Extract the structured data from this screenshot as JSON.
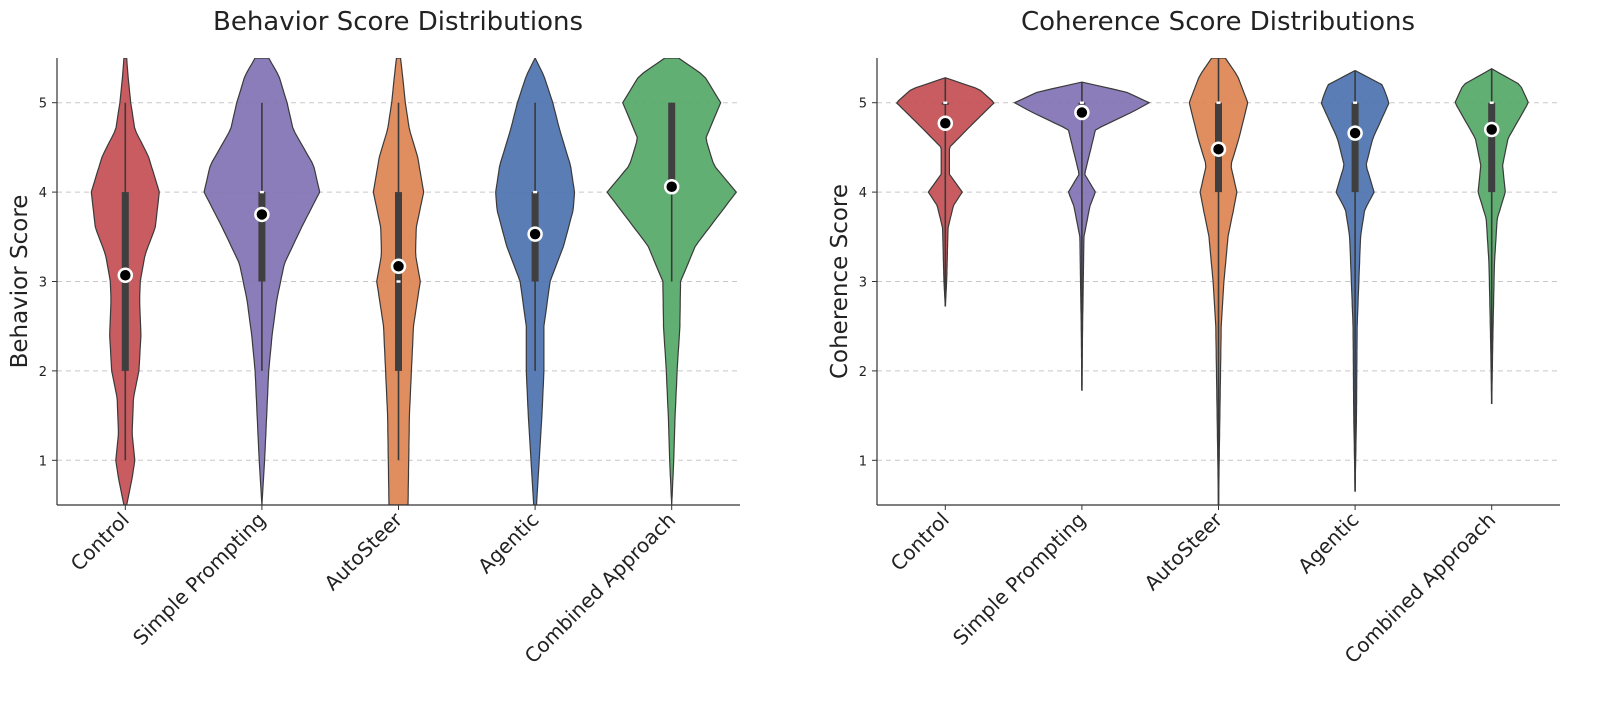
{
  "chart_data": [
    {
      "type": "violin",
      "title": "Behavior Score Distributions",
      "xlabel": "",
      "ylabel": "Behavior Score",
      "ylim": [
        0.5,
        5.5
      ],
      "yticks": [
        1,
        2,
        3,
        4,
        5
      ],
      "grid": "y-dashed",
      "categories": [
        "Control",
        "Simple Prompting",
        "AutoSteer",
        "Agentic",
        "Combined Approach"
      ],
      "colors": [
        "#c44e52",
        "#8172b3",
        "#dd8452",
        "#4c72b0",
        "#55a868"
      ],
      "series": [
        {
          "name": "Control",
          "mean": 3.07,
          "median": 3.0,
          "q1": 2.0,
          "q3": 4.0,
          "min": 1.0,
          "max": 5.0,
          "density": [
            [
              0.5,
              0.02
            ],
            [
              0.8,
              0.1
            ],
            [
              1.0,
              0.14
            ],
            [
              1.3,
              0.1
            ],
            [
              1.7,
              0.12
            ],
            [
              2.0,
              0.2
            ],
            [
              2.4,
              0.23
            ],
            [
              2.8,
              0.21
            ],
            [
              3.0,
              0.22
            ],
            [
              3.3,
              0.29
            ],
            [
              3.6,
              0.44
            ],
            [
              4.0,
              0.5
            ],
            [
              4.4,
              0.34
            ],
            [
              4.7,
              0.14
            ],
            [
              5.0,
              0.08
            ],
            [
              5.3,
              0.04
            ],
            [
              5.5,
              0.02
            ]
          ]
        },
        {
          "name": "Simple Prompting",
          "mean": 3.75,
          "median": 4.0,
          "q1": 3.0,
          "q3": 4.0,
          "min": 2.0,
          "max": 5.0,
          "density": [
            [
              0.5,
              0.0
            ],
            [
              1.0,
              0.04
            ],
            [
              1.5,
              0.07
            ],
            [
              2.0,
              0.1
            ],
            [
              2.4,
              0.15
            ],
            [
              2.8,
              0.22
            ],
            [
              3.2,
              0.33
            ],
            [
              3.6,
              0.58
            ],
            [
              4.0,
              0.85
            ],
            [
              4.3,
              0.76
            ],
            [
              4.7,
              0.46
            ],
            [
              5.0,
              0.37
            ],
            [
              5.3,
              0.25
            ],
            [
              5.5,
              0.1
            ]
          ]
        },
        {
          "name": "AutoSteer",
          "mean": 3.17,
          "median": 3.0,
          "q1": 2.0,
          "q3": 4.0,
          "min": 1.0,
          "max": 5.0,
          "density": [
            [
              0.5,
              0.14
            ],
            [
              1.0,
              0.15
            ],
            [
              1.5,
              0.16
            ],
            [
              2.0,
              0.19
            ],
            [
              2.5,
              0.22
            ],
            [
              3.0,
              0.32
            ],
            [
              3.3,
              0.25
            ],
            [
              3.6,
              0.26
            ],
            [
              4.0,
              0.37
            ],
            [
              4.4,
              0.28
            ],
            [
              4.7,
              0.16
            ],
            [
              5.0,
              0.1
            ],
            [
              5.3,
              0.06
            ],
            [
              5.5,
              0.03
            ]
          ]
        },
        {
          "name": "Agentic",
          "mean": 3.53,
          "median": 4.0,
          "q1": 3.0,
          "q3": 4.0,
          "min": 2.0,
          "max": 5.0,
          "density": [
            [
              0.5,
              0.02
            ],
            [
              1.0,
              0.06
            ],
            [
              1.5,
              0.1
            ],
            [
              2.0,
              0.13
            ],
            [
              2.5,
              0.13
            ],
            [
              3.0,
              0.22
            ],
            [
              3.4,
              0.42
            ],
            [
              3.8,
              0.56
            ],
            [
              4.0,
              0.58
            ],
            [
              4.3,
              0.52
            ],
            [
              4.7,
              0.36
            ],
            [
              5.0,
              0.26
            ],
            [
              5.3,
              0.13
            ],
            [
              5.5,
              0.0
            ]
          ]
        },
        {
          "name": "Combined Approach",
          "mean": 4.06,
          "median": 4.0,
          "q1": 4.0,
          "q3": 5.0,
          "min": 3.0,
          "max": 5.0,
          "density": [
            [
              0.5,
              0.0
            ],
            [
              1.0,
              0.03
            ],
            [
              1.5,
              0.05
            ],
            [
              2.0,
              0.08
            ],
            [
              2.5,
              0.12
            ],
            [
              3.0,
              0.13
            ],
            [
              3.4,
              0.35
            ],
            [
              3.7,
              0.65
            ],
            [
              4.0,
              0.95
            ],
            [
              4.3,
              0.62
            ],
            [
              4.6,
              0.5
            ],
            [
              5.0,
              0.72
            ],
            [
              5.3,
              0.48
            ],
            [
              5.5,
              0.1
            ]
          ]
        }
      ]
    },
    {
      "type": "violin",
      "title": "Coherence Score Distributions",
      "xlabel": "",
      "ylabel": "Coherence Score",
      "ylim": [
        0.5,
        5.5
      ],
      "yticks": [
        1,
        2,
        3,
        4,
        5
      ],
      "grid": "y-dashed",
      "categories": [
        "Control",
        "Simple Prompting",
        "AutoSteer",
        "Agentic",
        "Combined Approach"
      ],
      "colors": [
        "#c44e52",
        "#8172b3",
        "#dd8452",
        "#4c72b0",
        "#55a868"
      ],
      "series": [
        {
          "name": "Control",
          "mean": 4.77,
          "median": 5.0,
          "q1": 5.0,
          "q3": 5.0,
          "min": 2.72,
          "max": 5.28,
          "density": [
            [
              2.72,
              0.0
            ],
            [
              3.0,
              0.02
            ],
            [
              3.6,
              0.04
            ],
            [
              3.85,
              0.12
            ],
            [
              4.0,
              0.25
            ],
            [
              4.2,
              0.06
            ],
            [
              4.5,
              0.06
            ],
            [
              4.8,
              0.45
            ],
            [
              5.0,
              0.72
            ],
            [
              5.15,
              0.5
            ],
            [
              5.28,
              0.0
            ]
          ]
        },
        {
          "name": "Simple Prompting",
          "mean": 4.89,
          "median": 5.0,
          "q1": 5.0,
          "q3": 5.0,
          "min": 1.78,
          "max": 5.23,
          "density": [
            [
              1.78,
              0.0
            ],
            [
              2.5,
              0.01
            ],
            [
              3.5,
              0.03
            ],
            [
              3.85,
              0.12
            ],
            [
              4.0,
              0.2
            ],
            [
              4.2,
              0.04
            ],
            [
              4.7,
              0.2
            ],
            [
              4.9,
              0.75
            ],
            [
              5.0,
              0.99
            ],
            [
              5.12,
              0.65
            ],
            [
              5.23,
              0.0
            ]
          ]
        },
        {
          "name": "AutoSteer",
          "mean": 4.48,
          "median": 5.0,
          "q1": 4.0,
          "q3": 5.0,
          "min": 0.5,
          "max": 5.5,
          "density": [
            [
              0.5,
              0.0
            ],
            [
              1.5,
              0.02
            ],
            [
              2.5,
              0.04
            ],
            [
              3.0,
              0.08
            ],
            [
              3.5,
              0.14
            ],
            [
              3.8,
              0.22
            ],
            [
              4.0,
              0.27
            ],
            [
              4.3,
              0.18
            ],
            [
              4.6,
              0.3
            ],
            [
              5.0,
              0.43
            ],
            [
              5.3,
              0.28
            ],
            [
              5.5,
              0.1
            ]
          ]
        },
        {
          "name": "Agentic",
          "mean": 4.66,
          "median": 5.0,
          "q1": 4.0,
          "q3": 5.0,
          "min": 0.65,
          "max": 5.36,
          "density": [
            [
              0.65,
              0.0
            ],
            [
              1.5,
              0.02
            ],
            [
              2.5,
              0.03
            ],
            [
              3.5,
              0.08
            ],
            [
              3.8,
              0.14
            ],
            [
              4.0,
              0.28
            ],
            [
              4.3,
              0.16
            ],
            [
              4.6,
              0.26
            ],
            [
              5.0,
              0.5
            ],
            [
              5.2,
              0.4
            ],
            [
              5.36,
              0.0
            ]
          ]
        },
        {
          "name": "Combined Approach",
          "mean": 4.7,
          "median": 5.0,
          "q1": 4.0,
          "q3": 5.0,
          "min": 1.63,
          "max": 5.38,
          "density": [
            [
              1.63,
              0.0
            ],
            [
              2.5,
              0.02
            ],
            [
              3.2,
              0.04
            ],
            [
              3.7,
              0.08
            ],
            [
              4.0,
              0.2
            ],
            [
              4.3,
              0.16
            ],
            [
              4.6,
              0.24
            ],
            [
              5.0,
              0.54
            ],
            [
              5.2,
              0.42
            ],
            [
              5.38,
              0.0
            ]
          ]
        }
      ]
    }
  ]
}
